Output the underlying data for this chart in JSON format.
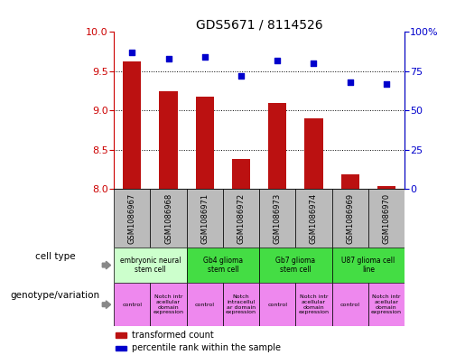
{
  "title": "GDS5671 / 8114526",
  "samples": [
    "GSM1086967",
    "GSM1086968",
    "GSM1086971",
    "GSM1086972",
    "GSM1086973",
    "GSM1086974",
    "GSM1086969",
    "GSM1086970"
  ],
  "transformed_count": [
    9.62,
    9.25,
    9.18,
    8.38,
    9.1,
    8.9,
    8.18,
    8.04
  ],
  "percentile_rank": [
    87,
    83,
    84,
    72,
    82,
    80,
    68,
    67
  ],
  "ylim_left": [
    8.0,
    10.0
  ],
  "ylim_right": [
    0,
    100
  ],
  "yticks_left": [
    8.0,
    8.5,
    9.0,
    9.5,
    10.0
  ],
  "yticks_right": [
    0,
    25,
    50,
    75,
    100
  ],
  "yticklabels_right": [
    "0",
    "25",
    "50",
    "75",
    "100%"
  ],
  "bar_color": "#bb1111",
  "dot_color": "#0000cc",
  "cell_type_row": [
    {
      "label": "embryonic neural\nstem cell",
      "start": 0,
      "end": 2,
      "color": "#ccffcc"
    },
    {
      "label": "Gb4 glioma\nstem cell",
      "start": 2,
      "end": 4,
      "color": "#44dd44"
    },
    {
      "label": "Gb7 glioma\nstem cell",
      "start": 4,
      "end": 6,
      "color": "#44dd44"
    },
    {
      "label": "U87 glioma cell\nline",
      "start": 6,
      "end": 8,
      "color": "#44dd44"
    }
  ],
  "genotype_row": [
    {
      "label": "control",
      "start": 0,
      "end": 1,
      "color": "#ee88ee"
    },
    {
      "label": "Notch intr\nacellular\ndomain\nexpression",
      "start": 1,
      "end": 2,
      "color": "#ee88ee"
    },
    {
      "label": "control",
      "start": 2,
      "end": 3,
      "color": "#ee88ee"
    },
    {
      "label": "Notch\nintracellul\nar domain\nexpression",
      "start": 3,
      "end": 4,
      "color": "#ee88ee"
    },
    {
      "label": "control",
      "start": 4,
      "end": 5,
      "color": "#ee88ee"
    },
    {
      "label": "Notch intr\nacellular\ndomain\nexpression",
      "start": 5,
      "end": 6,
      "color": "#ee88ee"
    },
    {
      "label": "control",
      "start": 6,
      "end": 7,
      "color": "#ee88ee"
    },
    {
      "label": "Notch intr\nacellular\ndomain\nexpression",
      "start": 7,
      "end": 8,
      "color": "#ee88ee"
    }
  ],
  "row_label_cell_type": "cell type",
  "row_label_genotype": "genotype/variation",
  "legend_bar_label": "transformed count",
  "legend_dot_label": "percentile rank within the sample",
  "bg_color": "#ffffff",
  "tick_color_left": "#cc0000",
  "tick_color_right": "#0000cc",
  "gsm_row_color": "#bbbbbb",
  "hgrid_values": [
    8.5,
    9.0,
    9.5
  ]
}
